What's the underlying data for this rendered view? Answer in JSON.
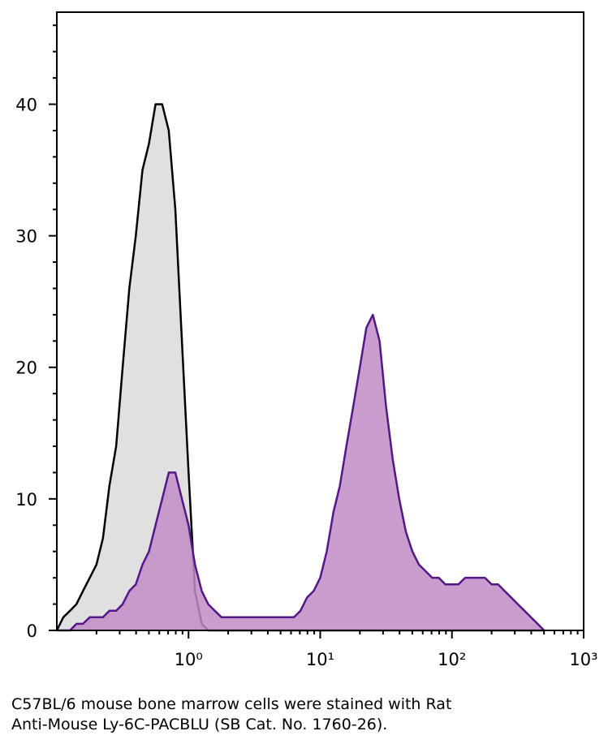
{
  "chart_data": {
    "type": "area",
    "xscale": "log",
    "x": [
      0.1,
      0.112,
      0.126,
      0.141,
      0.158,
      0.178,
      0.2,
      0.224,
      0.251,
      0.282,
      0.316,
      0.355,
      0.398,
      0.447,
      0.501,
      0.562,
      0.631,
      0.708,
      0.794,
      0.891,
      1,
      1.12,
      1.26,
      1.41,
      1.58,
      1.78,
      2,
      2.24,
      2.51,
      2.82,
      3.16,
      3.55,
      3.98,
      4.47,
      5.01,
      5.62,
      6.31,
      7.08,
      7.94,
      8.91,
      10,
      11.2,
      12.6,
      14.1,
      15.8,
      17.8,
      20,
      22.4,
      25.1,
      28.2,
      31.6,
      35.5,
      39.8,
      44.7,
      50.1,
      56.2,
      63.1,
      70.8,
      79.4,
      89.1,
      100,
      112,
      126,
      141,
      158,
      178,
      200,
      224,
      251,
      282,
      316,
      355,
      398,
      447,
      501
    ],
    "series": [
      {
        "color": "#000000",
        "fill": "#e0e0e0",
        "values": [
          0,
          1,
          1.5,
          2,
          3,
          4,
          5,
          7,
          11,
          14,
          20,
          26,
          30,
          35,
          37,
          40,
          40,
          38,
          32,
          22,
          12,
          3,
          0.5,
          0,
          0,
          0,
          0,
          0,
          0,
          0,
          0,
          0,
          0,
          0,
          0,
          0,
          0,
          0,
          0,
          0,
          0,
          0,
          0,
          0,
          0,
          0,
          0,
          0,
          0,
          0,
          0,
          0,
          0,
          0,
          0,
          0,
          0,
          0,
          0,
          0,
          0,
          0,
          0,
          0,
          0,
          0,
          0,
          0,
          0,
          0,
          0,
          0,
          0,
          0,
          0
        ]
      },
      {
        "color": "#56168a",
        "fill": "#c08cc4",
        "values": [
          0,
          0,
          0,
          0.5,
          0.5,
          1,
          1,
          1,
          1.5,
          1.5,
          2,
          3,
          3.5,
          5,
          6,
          8,
          10,
          12,
          12,
          10,
          8,
          5,
          3,
          2,
          1.5,
          1,
          1,
          1,
          1,
          1,
          1,
          1,
          1,
          1,
          1,
          1,
          1,
          1.5,
          2.5,
          3,
          4,
          6,
          9,
          11,
          14,
          17,
          20,
          23,
          24,
          22,
          17,
          13,
          10,
          7.5,
          6,
          5,
          4.5,
          4,
          4,
          3.5,
          3.5,
          3.5,
          4,
          4,
          4,
          4,
          3.5,
          3.5,
          3,
          2.5,
          2,
          1.5,
          1,
          0.5,
          0
        ]
      }
    ],
    "xlim": [
      0.1,
      1000
    ],
    "xticks": [
      {
        "value": 1,
        "label": "10⁰"
      },
      {
        "value": 10,
        "label": "10¹"
      },
      {
        "value": 100,
        "label": "10²"
      },
      {
        "value": 1000,
        "label": "10³"
      }
    ],
    "minor_xticks": [
      0.2,
      0.3,
      0.4,
      0.5,
      0.6,
      0.7,
      0.8,
      0.9,
      2,
      3,
      4,
      5,
      6,
      7,
      8,
      9,
      20,
      30,
      40,
      50,
      60,
      70,
      80,
      90,
      200,
      300,
      400,
      500,
      600,
      700,
      800,
      900
    ],
    "ylim": [
      0,
      47
    ],
    "yticks": [
      0,
      10,
      20,
      30,
      40
    ],
    "minor_yticks": [
      2,
      4,
      6,
      8,
      12,
      14,
      16,
      18,
      22,
      24,
      26,
      28,
      32,
      34,
      36,
      38,
      42,
      44,
      46
    ],
    "caption": [
      "C57BL/6 mouse bone marrow cells were stained with Rat",
      "Anti-Mouse Ly-6C-PACBLU (SB Cat. No. 1760-26)."
    ]
  }
}
